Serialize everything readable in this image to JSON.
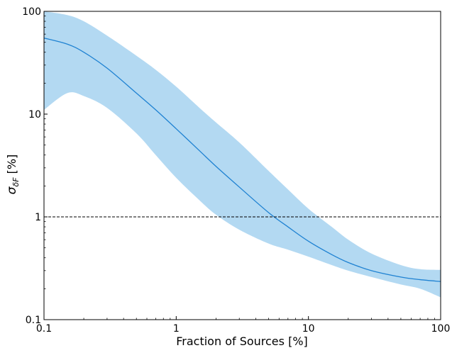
{
  "chart_data": {
    "type": "line",
    "xlabel": "Fraction of Sources [%]",
    "ylabel_main": "σ",
    "ylabel_sub": "δF",
    "ylabel_suffix": " [%]",
    "x_scale": "log",
    "y_scale": "log",
    "xlim": [
      0.1,
      100
    ],
    "ylim": [
      0.1,
      100
    ],
    "x_ticks": [
      {
        "value": 0.1,
        "label": "0.1"
      },
      {
        "value": 1,
        "label": "1"
      },
      {
        "value": 10,
        "label": "10"
      },
      {
        "value": 100,
        "label": "100"
      }
    ],
    "y_ticks": [
      {
        "value": 0.1,
        "label": "0.1"
      },
      {
        "value": 1,
        "label": "1"
      },
      {
        "value": 10,
        "label": "10"
      },
      {
        "value": 100,
        "label": "100"
      }
    ],
    "grid": false,
    "colors": {
      "line": "#1f82d2",
      "band": "#b3d9f2",
      "reference": "#000000"
    },
    "reference_line": {
      "y": 1,
      "style": "dashed"
    },
    "series": [
      {
        "x": [
          0.1,
          0.15,
          0.2,
          0.3,
          0.5,
          0.7,
          1,
          1.5,
          2,
          3,
          5,
          7,
          10,
          15,
          20,
          30,
          50,
          70,
          100
        ],
        "y": [
          55,
          48,
          40,
          28,
          16,
          11,
          7.2,
          4.4,
          3.1,
          1.95,
          1.1,
          0.8,
          0.58,
          0.43,
          0.36,
          0.3,
          0.26,
          0.245,
          0.235
        ],
        "lower": [
          11,
          16,
          15,
          11.5,
          6.5,
          4,
          2.4,
          1.45,
          1.05,
          0.75,
          0.55,
          0.48,
          0.41,
          0.34,
          0.3,
          0.26,
          0.22,
          0.2,
          0.165
        ],
        "upper": [
          100,
          92,
          80,
          58,
          37,
          27,
          18.5,
          11.5,
          8.3,
          5.3,
          2.8,
          1.85,
          1.2,
          0.8,
          0.6,
          0.44,
          0.34,
          0.31,
          0.305
        ]
      }
    ]
  }
}
